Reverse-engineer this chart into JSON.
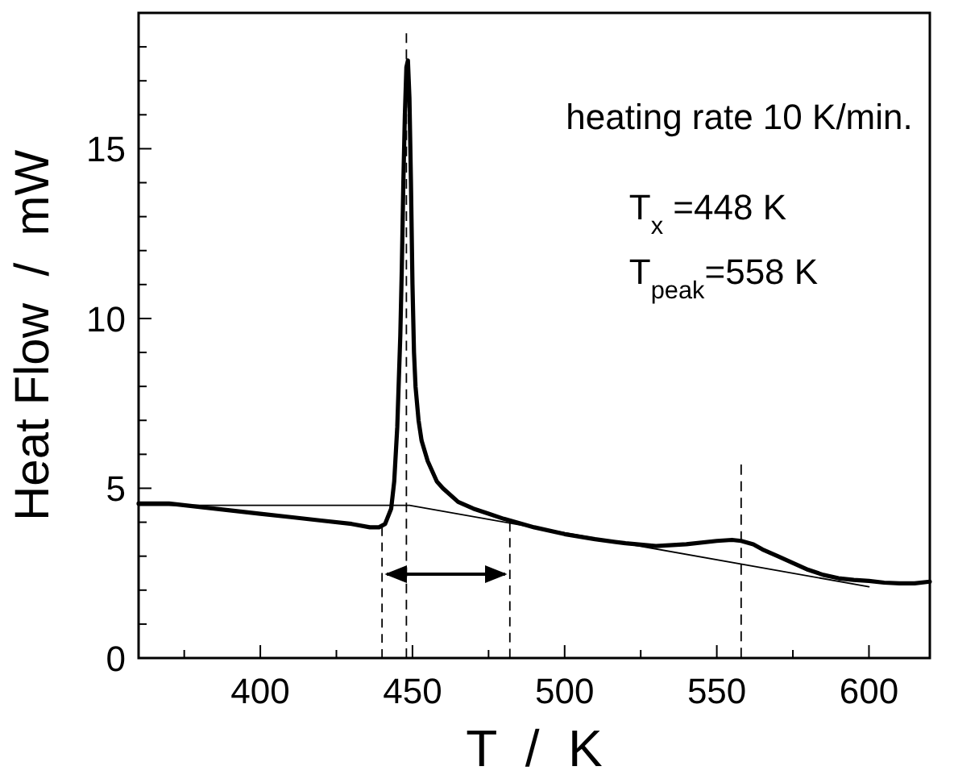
{
  "chart_data": {
    "type": "line",
    "xlabel": "T  /  K",
    "ylabel": "Heat Flow  /  mW",
    "xlim": [
      360,
      620
    ],
    "ylim": [
      0,
      19
    ],
    "xticks": [
      {
        "value": 375,
        "label": null
      },
      400,
      {
        "value": 425,
        "label": null
      },
      450,
      {
        "value": 475,
        "label": null
      },
      500,
      {
        "value": 525,
        "label": null
      },
      550,
      {
        "value": 575,
        "label": null
      },
      600
    ],
    "yticks": [
      0,
      {
        "value": 1,
        "label": null
      },
      {
        "value": 2,
        "label": null
      },
      {
        "value": 3,
        "label": null
      },
      {
        "value": 4,
        "label": null
      },
      5,
      {
        "value": 6,
        "label": null
      },
      {
        "value": 7,
        "label": null
      },
      {
        "value": 8,
        "label": null
      },
      {
        "value": 9,
        "label": null
      },
      10,
      {
        "value": 11,
        "label": null
      },
      {
        "value": 12,
        "label": null
      },
      {
        "value": 13,
        "label": null
      },
      {
        "value": 14,
        "label": null
      },
      15,
      {
        "value": 16,
        "label": null
      },
      {
        "value": 17,
        "label": null
      },
      {
        "value": 18,
        "label": null
      }
    ],
    "grid": false,
    "marker": "none",
    "annotations": [
      "heating rate 10 K/min.",
      "T$_{x}$ =448 K",
      "T$_{peak}$=558 K"
    ],
    "series": [
      {
        "color": "#000000",
        "line_style": "solid",
        "x": [
          360,
          370,
          380,
          390,
          400,
          410,
          420,
          430,
          436,
          439,
          441,
          443,
          444,
          445,
          446,
          446.5,
          447,
          447.5,
          448,
          448.5,
          449,
          449.5,
          450,
          450.5,
          451,
          452,
          453,
          455,
          458,
          460,
          465,
          470,
          475,
          480,
          490,
          500,
          510,
          520,
          530,
          540,
          550,
          555,
          558,
          562,
          565,
          570,
          575,
          580,
          585,
          590,
          595,
          600,
          605,
          610,
          615,
          620
        ],
        "values": [
          4.55,
          4.55,
          4.45,
          4.35,
          4.25,
          4.15,
          4.05,
          3.95,
          3.85,
          3.85,
          3.95,
          4.4,
          5.2,
          6.8,
          9.5,
          11.5,
          14,
          16,
          17.4,
          17.6,
          16.5,
          14,
          11,
          9,
          8,
          7,
          6.4,
          5.8,
          5.2,
          5.0,
          4.6,
          4.4,
          4.25,
          4.1,
          3.85,
          3.65,
          3.5,
          3.38,
          3.3,
          3.35,
          3.45,
          3.48,
          3.45,
          3.35,
          3.2,
          3.0,
          2.8,
          2.6,
          2.45,
          2.35,
          2.3,
          2.27,
          2.22,
          2.2,
          2.2,
          2.25
        ]
      },
      {
        "color": "#000000",
        "line_style": "solid",
        "x": [
          360,
          449,
          600
        ],
        "values": [
          4.5,
          4.5,
          2.1
        ]
      },
      {
        "color": "#000000",
        "line_style": "dashed",
        "x": [
          448,
          448
        ],
        "values": [
          0,
          18.4
        ]
      },
      {
        "color": "#000000",
        "line_style": "dashed",
        "x": [
          440,
          440
        ],
        "values": [
          0,
          3.85
        ]
      },
      {
        "color": "#000000",
        "line_style": "dashed",
        "x": [
          482,
          482
        ],
        "values": [
          0,
          4.0
        ]
      },
      {
        "color": "#000000",
        "line_style": "dashed",
        "x": [
          558,
          558
        ],
        "values": [
          0,
          5.7
        ]
      }
    ]
  }
}
